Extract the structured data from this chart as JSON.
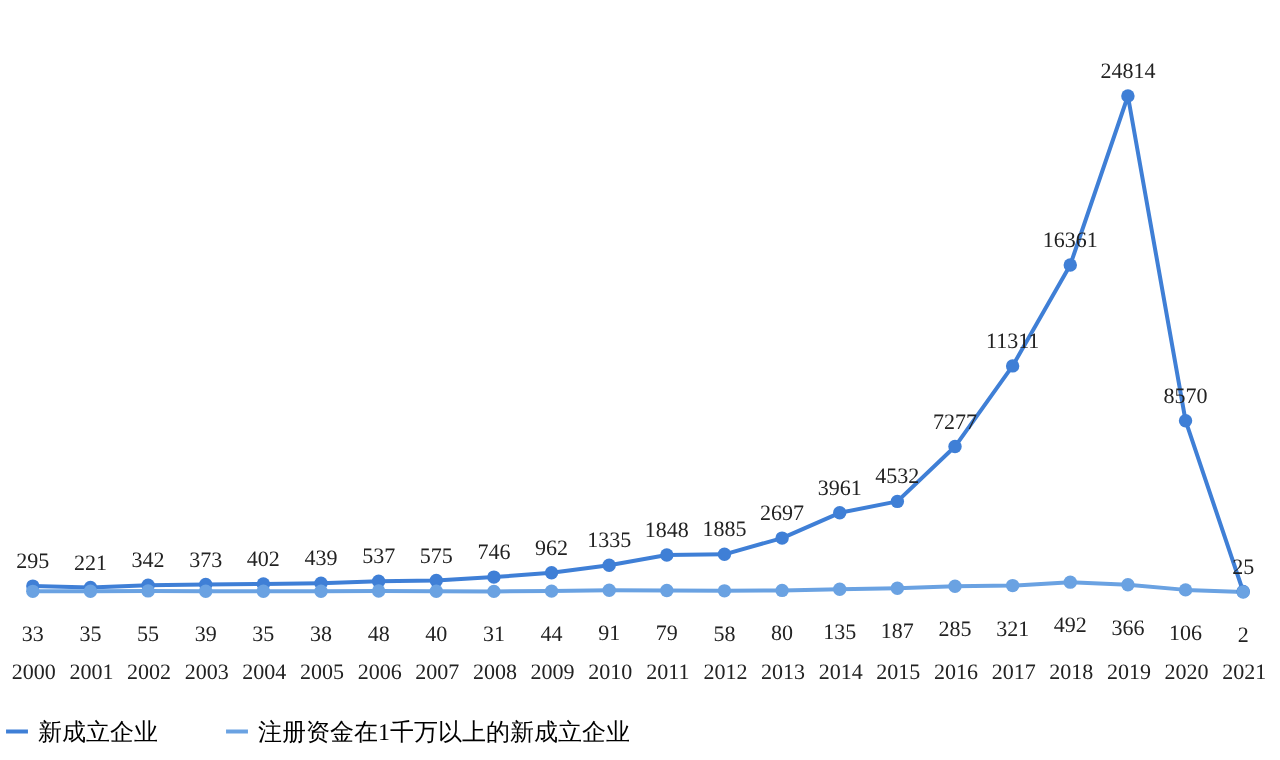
{
  "chart_data": {
    "type": "line",
    "categories": [
      "2000",
      "2001",
      "2002",
      "2003",
      "2004",
      "2005",
      "2006",
      "2007",
      "2008",
      "2009",
      "2010",
      "2011",
      "2012",
      "2013",
      "2014",
      "2015",
      "2016",
      "2017",
      "2018",
      "2019",
      "2020",
      "2021"
    ],
    "series": [
      {
        "name": "新成立企业",
        "color": "#3f7fd6",
        "values": [
          295,
          221,
          342,
          373,
          402,
          439,
          537,
          575,
          746,
          962,
          1335,
          1848,
          1885,
          2697,
          3961,
          4532,
          7277,
          11311,
          16361,
          24814,
          8570,
          25
        ]
      },
      {
        "name": "注册资金在1千万以上的新成立企业",
        "color": "#6aa2e2",
        "values": [
          33,
          35,
          55,
          39,
          35,
          38,
          48,
          40,
          31,
          44,
          91,
          79,
          58,
          80,
          135,
          187,
          285,
          321,
          492,
          366,
          106,
          2
        ]
      }
    ],
    "data_labels": true,
    "marker": "circle",
    "line_style": "solid",
    "legend": "bottom",
    "grid": false
  }
}
